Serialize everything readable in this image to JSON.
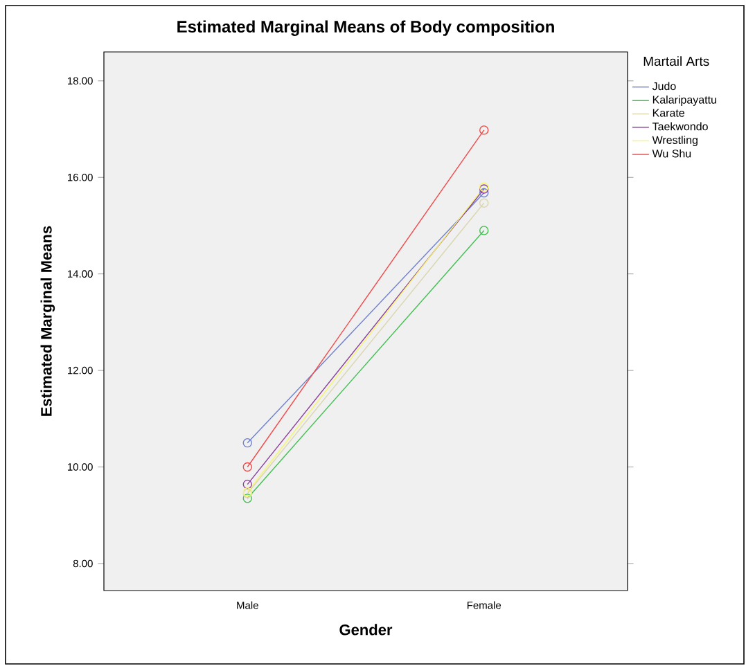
{
  "chart_data": {
    "type": "line",
    "title": "Estimated Marginal Means of Body composition",
    "xlabel": "Gender",
    "ylabel": "Estimated Marginal Means",
    "legend_title": "Martail Arts",
    "categories": [
      "Male",
      "Female"
    ],
    "series": [
      {
        "name": "Judo",
        "color": "#6f7fcf",
        "values": [
          10.5,
          15.68
        ]
      },
      {
        "name": "Kalaripayattu",
        "color": "#3fbf4f",
        "values": [
          9.35,
          14.9
        ]
      },
      {
        "name": "Karate",
        "color": "#d9d6b0",
        "values": [
          9.45,
          15.47
        ]
      },
      {
        "name": "Taekwondo",
        "color": "#8b3f9b",
        "values": [
          9.64,
          15.76
        ]
      },
      {
        "name": "Wrestling",
        "color": "#f5f56a",
        "values": [
          9.48,
          15.8
        ]
      },
      {
        "name": "Wu Shu",
        "color": "#f04a4a",
        "values": [
          10.0,
          16.98
        ]
      }
    ],
    "ylim": [
      7.44,
      18.6
    ],
    "yticks": [
      {
        "value": 8,
        "label": "8.00"
      },
      {
        "value": 10,
        "label": "10.00"
      },
      {
        "value": 12,
        "label": "12.00"
      },
      {
        "value": 14,
        "label": "14.00"
      },
      {
        "value": 16,
        "label": "16.00"
      },
      {
        "value": 18,
        "label": "18.00"
      }
    ],
    "legend": "right",
    "marker": "circle",
    "line_style": "solid",
    "grid": false
  }
}
